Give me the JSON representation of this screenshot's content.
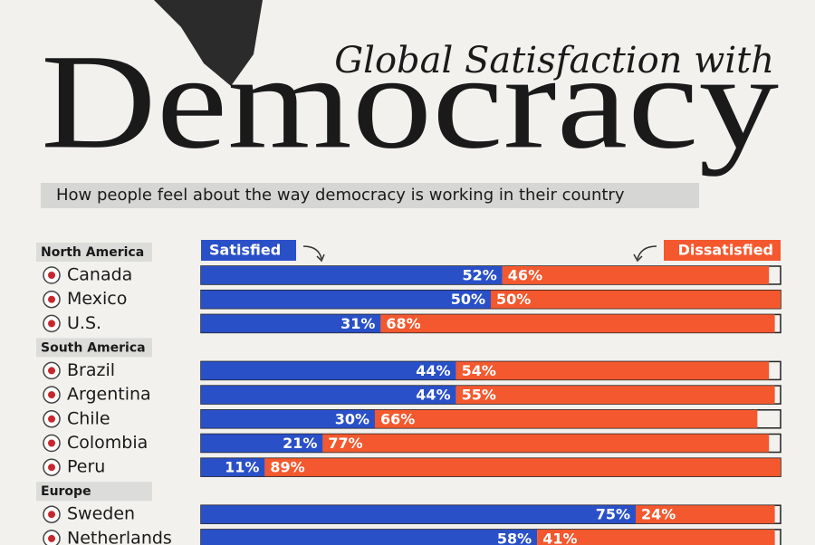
{
  "chart_data": {
    "type": "bar",
    "stacked": true,
    "kicker": "Global Satisfaction with",
    "title": "Democracy",
    "subtitle": "How people feel about the way democracy is working in their country",
    "xlim": [
      0,
      100
    ],
    "legend": [
      {
        "name": "Satisfied",
        "color": "#2a50c8"
      },
      {
        "name": "Dissatisfied",
        "color": "#f4582e"
      }
    ],
    "groups": [
      {
        "name": "North America",
        "categories": [
          "Canada",
          "Mexico",
          "U.S."
        ],
        "series": [
          {
            "values": [
              52,
              50,
              31
            ],
            "value_labels": [
              "52%",
              "50%",
              "31%"
            ]
          },
          {
            "values": [
              46,
              50,
              68
            ],
            "value_labels": [
              "46%",
              "50%",
              "68%"
            ]
          }
        ]
      },
      {
        "name": "South America",
        "categories": [
          "Brazil",
          "Argentina",
          "Chile",
          "Colombia",
          "Peru"
        ],
        "series": [
          {
            "values": [
              44,
              44,
              30,
              21,
              11
            ],
            "value_labels": [
              "44%",
              "44%",
              "30%",
              "21%",
              "11%"
            ]
          },
          {
            "values": [
              54,
              55,
              66,
              77,
              89
            ],
            "value_labels": [
              "54%",
              "55%",
              "66%",
              "77%",
              "89%"
            ]
          }
        ]
      },
      {
        "name": "Europe",
        "categories": [
          "Sweden",
          "Netherlands"
        ],
        "series": [
          {
            "values": [
              75,
              58
            ],
            "value_labels": [
              "75%",
              "58%"
            ]
          },
          {
            "values": [
              24,
              41
            ],
            "value_labels": [
              "24%",
              "41%"
            ]
          }
        ]
      }
    ]
  }
}
